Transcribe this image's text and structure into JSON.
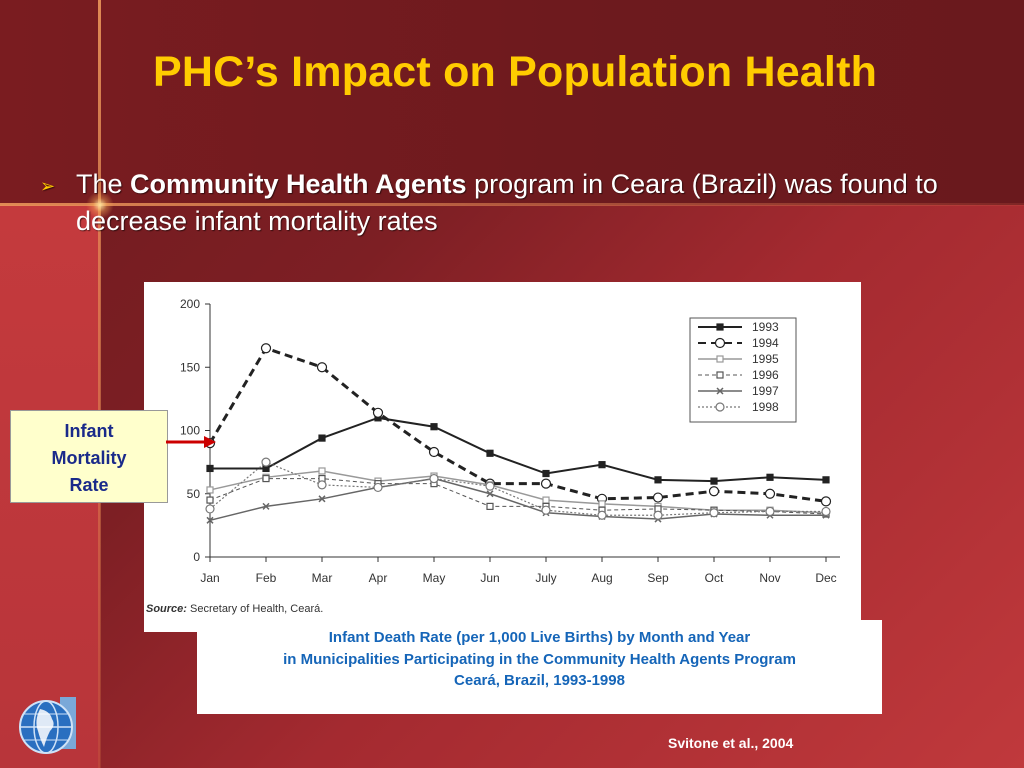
{
  "slide": {
    "title": "PHC’s Impact on Population Health",
    "bullet": {
      "prefix": "The ",
      "bold": "Community Health Agents",
      "suffix": " program in Ceara (Brazil) was found to decrease infant mortality rates"
    },
    "label": [
      "Infant",
      "Mortality",
      "Rate"
    ],
    "caption": [
      "Infant Death Rate (per 1,000 Live Births) by Month and Year",
      "in Municipalities Participating in the Community Health Agents Program",
      "Ceará, Brazil, 1993-1998"
    ],
    "citation": "Svitone et al., 2004",
    "colors": {
      "title": "#ffcc00",
      "caption": "#1565b8",
      "label_bg": "#ffffcc",
      "arrow": "#cc0000"
    }
  },
  "chart_data": {
    "type": "line",
    "categories": [
      "Jan",
      "Feb",
      "Mar",
      "Apr",
      "May",
      "Jun",
      "July",
      "Aug",
      "Sep",
      "Oct",
      "Nov",
      "Dec"
    ],
    "ylim": [
      0,
      200
    ],
    "yticks": [
      0,
      50,
      100,
      150,
      200
    ],
    "legend_position": "top-right",
    "source_label": "Source:",
    "source_text": " Secretary of Health, Ceará.",
    "series": [
      {
        "name": "1993",
        "style": "solid-filled-square",
        "values": [
          70,
          70,
          94,
          110,
          103,
          82,
          66,
          73,
          61,
          60,
          63,
          61
        ]
      },
      {
        "name": "1994",
        "style": "dashed-open-circle",
        "values": [
          90,
          165,
          150,
          114,
          83,
          58,
          58,
          46,
          47,
          52,
          50,
          44
        ]
      },
      {
        "name": "1995",
        "style": "solid-open-square",
        "values": [
          53,
          63,
          68,
          60,
          64,
          57,
          45,
          42,
          40,
          37,
          37,
          35
        ]
      },
      {
        "name": "1996",
        "style": "dashed-open-square",
        "values": [
          45,
          62,
          62,
          58,
          58,
          40,
          40,
          37,
          38,
          37,
          36,
          34
        ]
      },
      {
        "name": "1997",
        "style": "solid-x",
        "values": [
          29,
          40,
          46,
          55,
          62,
          50,
          35,
          32,
          30,
          34,
          33,
          33
        ]
      },
      {
        "name": "1998",
        "style": "dotted-open-circle",
        "values": [
          38,
          75,
          57,
          55,
          62,
          56,
          37,
          33,
          33,
          35,
          36,
          36
        ]
      }
    ]
  }
}
